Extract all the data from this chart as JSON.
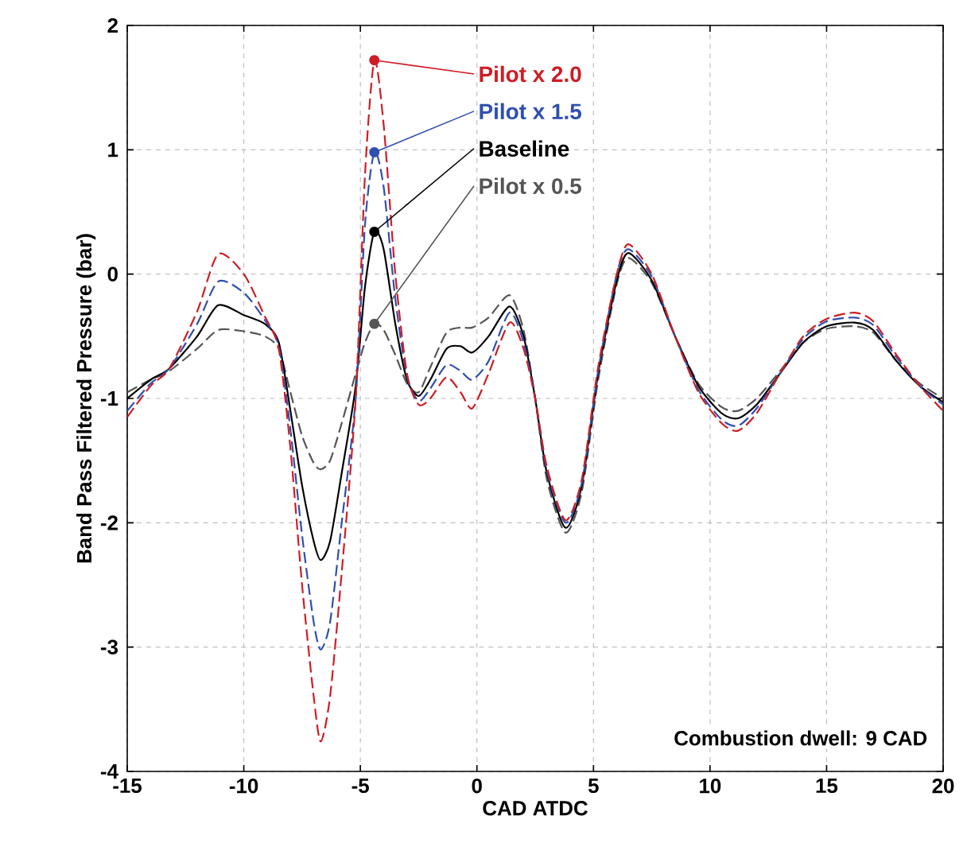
{
  "chart_data": {
    "type": "line",
    "xlabel": "CAD ATDC",
    "ylabel": "Band Pass Filtered Pressure (bar)",
    "x": [
      -15,
      -14,
      -13.2,
      -12,
      -11.1,
      -10,
      -9.1,
      -8.5,
      -8,
      -7.5,
      -7,
      -6.7,
      -6.3,
      -5.8,
      -5.2,
      -4.8,
      -4.4,
      -4,
      -3.5,
      -3,
      -2.5,
      -2,
      -1.3,
      -0.7,
      -0.2,
      0.5,
      1.4,
      2,
      2.5,
      3,
      3.8,
      4.5,
      5.2,
      6,
      6.5,
      7.5,
      8.5,
      9.5,
      10.5,
      11.2,
      12,
      13,
      14,
      15,
      16.2,
      17,
      18,
      19,
      20
    ],
    "series": [
      {
        "name": "Pilot x 2.0",
        "color": "#d01c24",
        "line_style": "dashed",
        "values": [
          -1.15,
          -0.9,
          -0.76,
          -0.3,
          0.16,
          0.0,
          -0.34,
          -0.6,
          -1.4,
          -2.5,
          -3.4,
          -3.76,
          -3.4,
          -2.4,
          -1.0,
          0.8,
          1.72,
          1.2,
          0.0,
          -0.8,
          -1.05,
          -1.0,
          -0.83,
          -0.95,
          -1.08,
          -0.8,
          -0.39,
          -0.6,
          -1.0,
          -1.55,
          -1.98,
          -1.65,
          -0.75,
          0.0,
          0.24,
          0.0,
          -0.5,
          -0.95,
          -1.2,
          -1.26,
          -1.12,
          -0.8,
          -0.5,
          -0.36,
          -0.31,
          -0.38,
          -0.65,
          -0.9,
          -1.1
        ]
      },
      {
        "name": "Pilot x 1.5",
        "color": "#2f4fb0",
        "line_style": "dashed",
        "values": [
          -1.1,
          -0.88,
          -0.76,
          -0.4,
          -0.06,
          -0.15,
          -0.37,
          -0.58,
          -1.25,
          -2.1,
          -2.8,
          -3.02,
          -2.8,
          -2.0,
          -1.0,
          0.4,
          0.98,
          0.7,
          -0.2,
          -0.82,
          -1.02,
          -0.92,
          -0.73,
          -0.78,
          -0.85,
          -0.7,
          -0.31,
          -0.55,
          -1.0,
          -1.58,
          -2.0,
          -1.68,
          -0.78,
          0.0,
          0.2,
          -0.02,
          -0.5,
          -0.93,
          -1.17,
          -1.22,
          -1.08,
          -0.8,
          -0.52,
          -0.38,
          -0.35,
          -0.41,
          -0.67,
          -0.9,
          -1.05
        ]
      },
      {
        "name": "Baseline",
        "color": "#000000",
        "line_style": "solid",
        "values": [
          -1.0,
          -0.85,
          -0.76,
          -0.5,
          -0.25,
          -0.33,
          -0.4,
          -0.55,
          -1.1,
          -1.7,
          -2.15,
          -2.3,
          -2.15,
          -1.6,
          -0.9,
          -0.1,
          0.34,
          0.2,
          -0.4,
          -0.85,
          -0.98,
          -0.85,
          -0.6,
          -0.58,
          -0.63,
          -0.5,
          -0.26,
          -0.5,
          -1.0,
          -1.6,
          -2.04,
          -1.7,
          -0.8,
          -0.05,
          0.17,
          -0.05,
          -0.5,
          -0.9,
          -1.12,
          -1.16,
          -1.05,
          -0.8,
          -0.55,
          -0.42,
          -0.39,
          -0.45,
          -0.7,
          -0.9,
          -1.03
        ]
      },
      {
        "name": "Pilot x 0.5",
        "color": "#555555",
        "line_style": "dashed",
        "values": [
          -0.95,
          -0.85,
          -0.78,
          -0.6,
          -0.45,
          -0.46,
          -0.5,
          -0.6,
          -0.95,
          -1.3,
          -1.52,
          -1.57,
          -1.5,
          -1.2,
          -0.8,
          -0.55,
          -0.4,
          -0.45,
          -0.65,
          -0.88,
          -0.95,
          -0.75,
          -0.47,
          -0.43,
          -0.43,
          -0.35,
          -0.17,
          -0.45,
          -1.0,
          -1.65,
          -2.08,
          -1.75,
          -0.85,
          -0.08,
          0.13,
          -0.07,
          -0.5,
          -0.88,
          -1.07,
          -1.1,
          -1.0,
          -0.78,
          -0.55,
          -0.44,
          -0.42,
          -0.47,
          -0.7,
          -0.88,
          -1.0
        ]
      }
    ],
    "xlim": [
      -15,
      20
    ],
    "xticks": [
      -15,
      -10,
      -5,
      0,
      5,
      10,
      15,
      20
    ],
    "ylim": [
      -4,
      2
    ],
    "yticks": [
      -4,
      -3,
      -2,
      -1,
      0,
      1,
      2
    ],
    "grid": true,
    "legend": "top",
    "annotations": [
      "Combustion dwell: 9 CAD"
    ]
  }
}
